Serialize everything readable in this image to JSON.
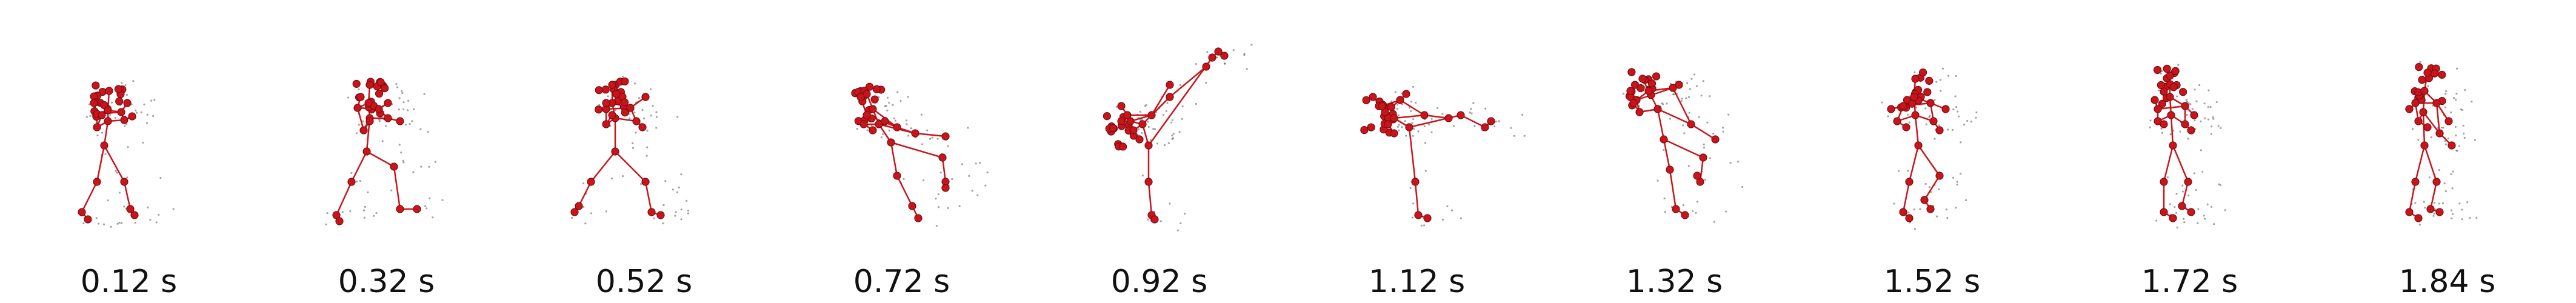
{
  "colors": {
    "skeleton": "#c8151b",
    "joint_stroke": "#7a0b0e",
    "trace": "#555555"
  },
  "frames": [
    {
      "label": "0.12 s"
    },
    {
      "label": "0.32 s"
    },
    {
      "label": "0.52 s"
    },
    {
      "label": "0.72 s"
    },
    {
      "label": "0.92 s"
    },
    {
      "label": "1.12 s"
    },
    {
      "label": "1.32 s"
    },
    {
      "label": "1.52 s"
    },
    {
      "label": "1.72 s"
    },
    {
      "label": "1.84 s"
    }
  ]
}
